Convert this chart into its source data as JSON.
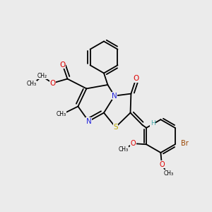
{
  "bg_color": "#ebebeb",
  "fig_size": [
    3.0,
    3.0
  ],
  "dpi": 100,
  "colors": {
    "C": "#000000",
    "N": "#2222dd",
    "O": "#dd0000",
    "S": "#bbaa00",
    "Br": "#994400",
    "H": "#44aaaa",
    "bond": "#000000"
  },
  "lw": 1.3,
  "fs": 7.0,
  "xlim": [
    0.0,
    1.0
  ],
  "ylim": [
    0.0,
    1.0
  ]
}
